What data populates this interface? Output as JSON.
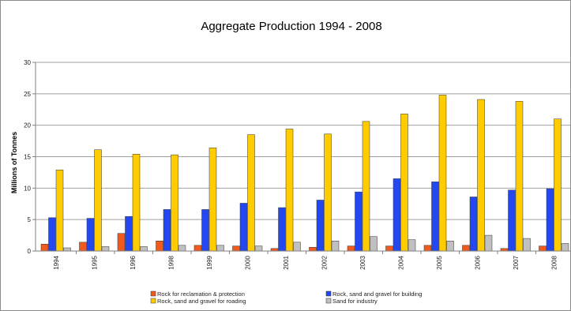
{
  "chart_data": {
    "type": "bar",
    "title": "Aggregate Production 1994 - 2008",
    "xlabel": "",
    "ylabel": "Millions of Tonnes",
    "ylim": [
      0,
      30
    ],
    "yticks": [
      0,
      5,
      10,
      15,
      20,
      25,
      30
    ],
    "grid": true,
    "legend_position": "bottom",
    "categories": [
      "1994",
      "1995",
      "1996",
      "1998",
      "1999",
      "2000",
      "2001",
      "2002",
      "2003",
      "2004",
      "2005",
      "2006",
      "2007",
      "2008"
    ],
    "series": [
      {
        "name": "Rock for reclamation & protection",
        "color": "#f05a1e",
        "values": [
          1.1,
          1.4,
          2.8,
          1.6,
          0.9,
          0.8,
          0.4,
          0.6,
          0.8,
          0.8,
          0.9,
          0.9,
          0.4,
          0.8
        ]
      },
      {
        "name": "Rock, sand and gravel for building",
        "color": "#2448f0",
        "values": [
          5.3,
          5.2,
          5.5,
          6.6,
          6.6,
          7.6,
          6.9,
          8.1,
          9.4,
          11.5,
          11.0,
          8.6,
          9.7,
          9.9
        ]
      },
      {
        "name": "Rock, sand and gravel for roading",
        "color": "#ffcc00",
        "values": [
          12.9,
          16.1,
          15.4,
          15.3,
          16.4,
          18.5,
          19.4,
          18.6,
          20.6,
          21.8,
          24.8,
          24.1,
          23.8,
          21.0
        ]
      },
      {
        "name": "Sand for industry",
        "color": "#c0c0c0",
        "values": [
          0.5,
          0.7,
          0.7,
          0.9,
          0.9,
          0.8,
          1.4,
          1.6,
          2.3,
          1.8,
          1.6,
          2.5,
          2.0,
          1.2
        ]
      }
    ]
  }
}
